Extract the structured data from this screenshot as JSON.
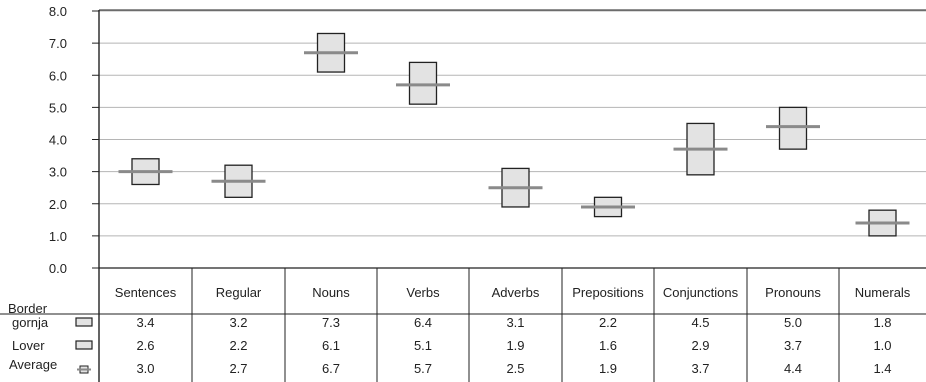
{
  "chart_data": {
    "type": "box",
    "title": "",
    "xlabel": "",
    "ylabel": "",
    "ylim": [
      0,
      8
    ],
    "yticks": [
      "0.0",
      "1.0",
      "2.0",
      "3.0",
      "4.0",
      "5.0",
      "6.0",
      "7.0",
      "8.0"
    ],
    "grid": true,
    "categories": [
      "Sentences",
      "Regular",
      "Nouns",
      "Verbs",
      "Adverbs",
      "Prepositions",
      "Conjunctions",
      "Pronouns",
      "Numerals"
    ],
    "table_header": "Border",
    "series": [
      {
        "name": "gornja",
        "values": [
          3.4,
          3.2,
          7.3,
          6.4,
          3.1,
          2.2,
          4.5,
          5.0,
          1.8
        ],
        "labels": [
          "3.4",
          "3.2",
          "7.3",
          "6.4",
          "3.1",
          "2.2",
          "4.5",
          "5.0",
          "1.8"
        ]
      },
      {
        "name": "Lover",
        "values": [
          2.6,
          2.2,
          6.1,
          5.1,
          1.9,
          1.6,
          2.9,
          3.7,
          1.0
        ],
        "labels": [
          "2.6",
          "2.2",
          "6.1",
          "5.1",
          "1.9",
          "1.6",
          "2.9",
          "3.7",
          "1.0"
        ]
      },
      {
        "name": "Average",
        "values": [
          3.0,
          2.7,
          6.7,
          5.7,
          2.5,
          1.9,
          3.7,
          4.4,
          1.4
        ],
        "labels": [
          "3.0",
          "2.7",
          "6.7",
          "5.7",
          "2.5",
          "1.9",
          "3.7",
          "4.4",
          "1.4"
        ]
      }
    ],
    "colors": {
      "box_fill": "#e3e3e3",
      "box_stroke": "#222222",
      "avg_line": "#8a8a8a",
      "grid": "#b5b5b5"
    }
  }
}
